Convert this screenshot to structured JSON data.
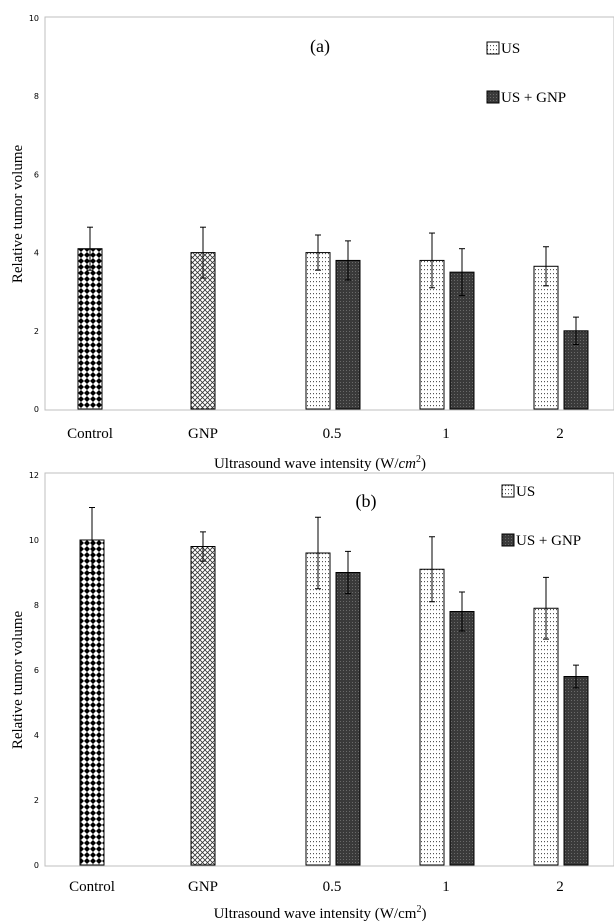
{
  "chart_data": [
    {
      "type": "bar",
      "title": "(a)",
      "xlabel_main": "Ultrasound wave intensity (W/",
      "xlabel_unit": "cm",
      "xlabel_sup": "2",
      "xlabel_close": ")",
      "ylabel": "Relative tumor volume",
      "ylim": [
        0,
        10
      ],
      "yticks": [
        "0",
        "2",
        "4",
        "6",
        "8",
        "10"
      ],
      "categories": [
        "Control",
        "GNP",
        "0.5",
        "1",
        "2"
      ],
      "legend": [
        "US",
        "US + GNP"
      ],
      "bars": [
        {
          "category": "Control",
          "group": "Control",
          "value": 4.1,
          "err": 0.55
        },
        {
          "category": "GNP",
          "group": "GNP",
          "value": 4.0,
          "err": 0.65
        },
        {
          "category": "0.5",
          "group": "US",
          "value": 4.0,
          "err": 0.45
        },
        {
          "category": "0.5",
          "group": "US + GNP",
          "value": 3.8,
          "err": 0.5
        },
        {
          "category": "1",
          "group": "US",
          "value": 3.8,
          "err": 0.7
        },
        {
          "category": "1",
          "group": "US + GNP",
          "value": 3.5,
          "err": 0.6
        },
        {
          "category": "2",
          "group": "US",
          "value": 3.65,
          "err": 0.5
        },
        {
          "category": "2",
          "group": "US + GNP",
          "value": 2.0,
          "err": 0.35
        }
      ]
    },
    {
      "type": "bar",
      "title": "(b)",
      "xlabel_main": "Ultrasound wave intensity (W/cm",
      "xlabel_unit": "",
      "xlabel_sup": "2",
      "xlabel_close": ")",
      "ylabel": "Relative tumor volume",
      "ylim": [
        0,
        12
      ],
      "yticks": [
        "0",
        "2",
        "4",
        "6",
        "8",
        "10",
        "12"
      ],
      "categories": [
        "Control",
        "GNP",
        "0.5",
        "1",
        "2"
      ],
      "legend": [
        "US",
        "US + GNP"
      ],
      "bars": [
        {
          "category": "Control",
          "group": "Control",
          "value": 10.0,
          "err": 1.0
        },
        {
          "category": "GNP",
          "group": "GNP",
          "value": 9.8,
          "err": 0.45
        },
        {
          "category": "0.5",
          "group": "US",
          "value": 9.6,
          "err": 1.1
        },
        {
          "category": "0.5",
          "group": "US + GNP",
          "value": 9.0,
          "err": 0.65
        },
        {
          "category": "1",
          "group": "US",
          "value": 9.1,
          "err": 1.0
        },
        {
          "category": "1",
          "group": "US + GNP",
          "value": 7.8,
          "err": 0.6
        },
        {
          "category": "2",
          "group": "US",
          "value": 7.9,
          "err": 0.95
        },
        {
          "category": "2",
          "group": "US + GNP",
          "value": 5.8,
          "err": 0.35
        }
      ]
    }
  ]
}
